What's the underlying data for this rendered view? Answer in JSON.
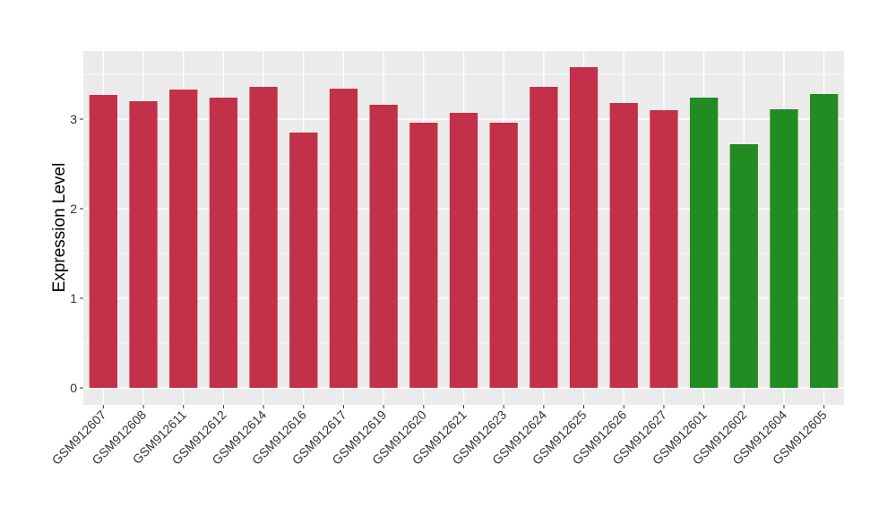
{
  "chart_data": {
    "type": "bar",
    "title": "",
    "xlabel": "",
    "ylabel": "Expression Level",
    "ylim": [
      -0.19,
      3.76
    ],
    "yticks": [
      0,
      1,
      2,
      3
    ],
    "grid": true,
    "legend": "none",
    "categories": [
      "GSM912607",
      "GSM912608",
      "GSM912611",
      "GSM912612",
      "GSM912614",
      "GSM912616",
      "GSM912617",
      "GSM912619",
      "GSM912620",
      "GSM912621",
      "GSM912623",
      "GSM912624",
      "GSM912625",
      "GSM912626",
      "GSM912627",
      "GSM912601",
      "GSM912602",
      "GSM912604",
      "GSM912605"
    ],
    "values": [
      3.27,
      3.2,
      3.33,
      3.24,
      3.36,
      2.85,
      3.34,
      3.16,
      2.96,
      3.07,
      2.96,
      3.36,
      3.58,
      3.18,
      3.1,
      3.24,
      2.72,
      3.11,
      3.28
    ],
    "groups": [
      "a",
      "a",
      "a",
      "a",
      "a",
      "a",
      "a",
      "a",
      "a",
      "a",
      "a",
      "a",
      "a",
      "a",
      "a",
      "b",
      "b",
      "b",
      "b"
    ],
    "colors": {
      "a": "#c33049",
      "b": "#228b22",
      "panel": "#ebebeb",
      "grid": "#ffffff"
    }
  }
}
